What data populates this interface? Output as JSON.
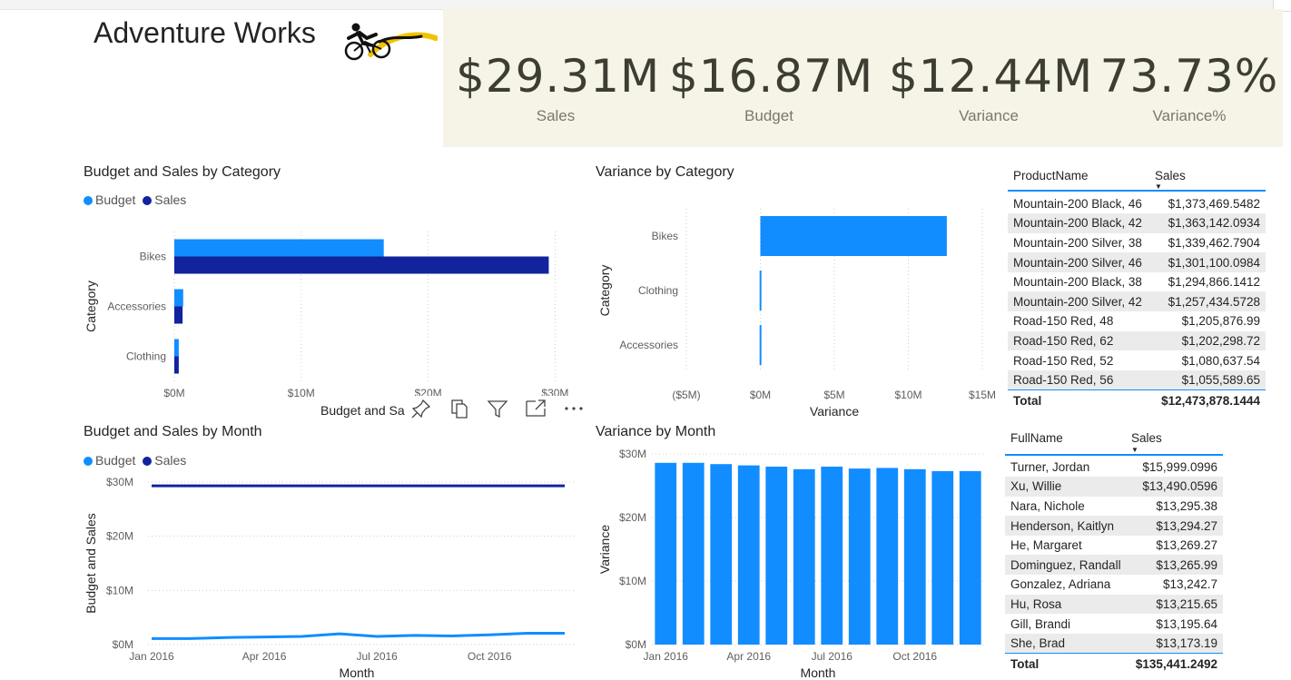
{
  "report": {
    "title": "Adventure Works"
  },
  "kpis": [
    {
      "value": "$29.31M",
      "label": "Sales"
    },
    {
      "value": "$16.87M",
      "label": "Budget"
    },
    {
      "value": "$12.44M",
      "label": "Variance"
    },
    {
      "value": "73.73%",
      "label": "Variance%"
    }
  ],
  "colors": {
    "budget": "#118dff",
    "sales": "#12239e",
    "variance": "#118dff",
    "kpi_bg": "#f6f4e6"
  },
  "legend": {
    "budget": "Budget",
    "sales": "Sales"
  },
  "toolbar": {
    "icons": [
      "pin-icon",
      "copy-icon",
      "filter-icon",
      "focus-mode-icon",
      "more-options-icon"
    ]
  },
  "charts": {
    "cat_budget_sales": {
      "title": "Budget and Sales by Category",
      "xlabel_visible": "Budget and Sa",
      "ylabel": "Category"
    },
    "var_cat": {
      "title": "Variance by Category",
      "xlabel": "Variance",
      "ylabel": "Category"
    },
    "month_budget_sales": {
      "title": "Budget and Sales by Month",
      "xlabel": "Month",
      "ylabel": "Budget and Sales"
    },
    "var_month": {
      "title": "Variance by Month",
      "xlabel": "Month",
      "ylabel": "Variance"
    }
  },
  "chart_data": [
    {
      "type": "bar",
      "orientation": "horizontal",
      "title": "Budget and Sales by Category",
      "xlabel": "Budget and Sales",
      "ylabel": "Category",
      "categories": [
        "Bikes",
        "Accessories",
        "Clothing"
      ],
      "series": [
        {
          "name": "Budget",
          "values": [
            16.5,
            0.7,
            0.35
          ]
        },
        {
          "name": "Sales",
          "values": [
            29.5,
            0.65,
            0.35
          ]
        }
      ],
      "xticks": [
        "$0M",
        "$10M",
        "$20M",
        "$30M"
      ],
      "xlim": [
        0,
        31.4
      ],
      "legend": "top-left",
      "grid": true
    },
    {
      "type": "bar",
      "orientation": "horizontal",
      "title": "Variance by Category",
      "xlabel": "Variance",
      "ylabel": "Category",
      "categories": [
        "Bikes",
        "Clothing",
        "Accessories"
      ],
      "values": [
        12.6,
        -0.05,
        -0.05
      ],
      "xticks": [
        "($5M)",
        "$0M",
        "$5M",
        "$10M",
        "$15M"
      ],
      "xlim": [
        -5,
        15
      ],
      "grid": true
    },
    {
      "type": "line",
      "title": "Budget and Sales by Month",
      "xlabel": "Month",
      "ylabel": "Budget and Sales",
      "x": [
        "Jan 2016",
        "Feb 2016",
        "Mar 2016",
        "Apr 2016",
        "May 2016",
        "Jun 2016",
        "Jul 2016",
        "Aug 2016",
        "Sep 2016",
        "Oct 2016",
        "Nov 2016",
        "Dec 2016"
      ],
      "xticks": [
        "Jan 2016",
        "Apr 2016",
        "Jul 2016",
        "Oct 2016"
      ],
      "yticks": [
        "$0M",
        "$10M",
        "$20M",
        "$30M"
      ],
      "ylim": [
        0,
        30
      ],
      "series": [
        {
          "name": "Budget",
          "values": [
            1.1,
            1.1,
            1.3,
            1.4,
            1.5,
            2.0,
            1.5,
            1.7,
            1.6,
            1.8,
            2.1,
            2.1
          ]
        },
        {
          "name": "Sales",
          "values": [
            29.3,
            29.3,
            29.3,
            29.3,
            29.3,
            29.3,
            29.3,
            29.3,
            29.3,
            29.3,
            29.3,
            29.3
          ]
        }
      ],
      "legend": "top-left",
      "grid": true
    },
    {
      "type": "bar",
      "title": "Variance by Month",
      "xlabel": "Month",
      "ylabel": "Variance",
      "categories": [
        "Jan 2016",
        "Feb 2016",
        "Mar 2016",
        "Apr 2016",
        "May 2016",
        "Jun 2016",
        "Jul 2016",
        "Aug 2016",
        "Sep 2016",
        "Oct 2016",
        "Nov 2016",
        "Dec 2016"
      ],
      "xticks": [
        "Jan 2016",
        "Apr 2016",
        "Jul 2016",
        "Oct 2016"
      ],
      "yticks": [
        "$0M",
        "$10M",
        "$20M",
        "$30M"
      ],
      "ylim": [
        0,
        30
      ],
      "values": [
        28.6,
        28.6,
        28.4,
        28.2,
        28.0,
        27.6,
        28.0,
        27.7,
        27.8,
        27.6,
        27.3,
        27.3
      ],
      "grid": true
    }
  ],
  "products_table": {
    "headers": [
      "ProductName",
      "Sales"
    ],
    "rows": [
      [
        "Mountain-200 Black, 46",
        "$1,373,469.5482"
      ],
      [
        "Mountain-200 Black, 42",
        "$1,363,142.0934"
      ],
      [
        "Mountain-200 Silver, 38",
        "$1,339,462.7904"
      ],
      [
        "Mountain-200 Silver, 46",
        "$1,301,100.0984"
      ],
      [
        "Mountain-200 Black, 38",
        "$1,294,866.1412"
      ],
      [
        "Mountain-200 Silver, 42",
        "$1,257,434.5728"
      ],
      [
        "Road-150 Red, 48",
        "$1,205,876.99"
      ],
      [
        "Road-150 Red, 62",
        "$1,202,298.72"
      ],
      [
        "Road-150 Red, 52",
        "$1,080,637.54"
      ],
      [
        "Road-150 Red, 56",
        "$1,055,589.65"
      ]
    ],
    "total_label": "Total",
    "total_value": "$12,473,878.1444"
  },
  "customers_table": {
    "headers": [
      "FullName",
      "Sales"
    ],
    "rows": [
      [
        "Turner, Jordan",
        "$15,999.0996"
      ],
      [
        "Xu, Willie",
        "$13,490.0596"
      ],
      [
        "Nara, Nichole",
        "$13,295.38"
      ],
      [
        "Henderson, Kaitlyn",
        "$13,294.27"
      ],
      [
        "He, Margaret",
        "$13,269.27"
      ],
      [
        "Dominguez, Randall",
        "$13,265.99"
      ],
      [
        "Gonzalez, Adriana",
        "$13,242.7"
      ],
      [
        "Hu, Rosa",
        "$13,215.65"
      ],
      [
        "Gill, Brandi",
        "$13,195.64"
      ],
      [
        "She, Brad",
        "$13,173.19"
      ]
    ],
    "total_label": "Total",
    "total_value": "$135,441.2492"
  }
}
